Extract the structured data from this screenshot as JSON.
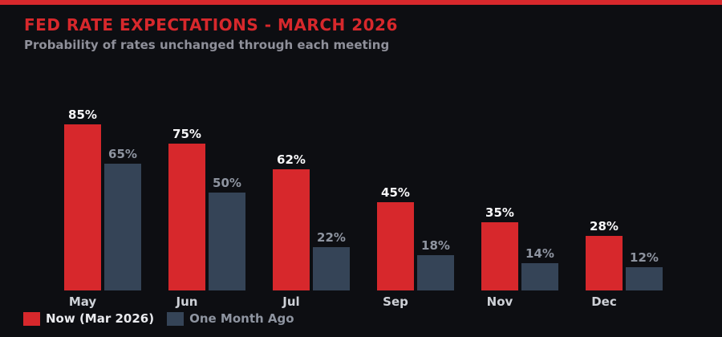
{
  "page": {
    "background_color": "#0d0e12",
    "accent_color": "#d7282c"
  },
  "header": {
    "title": "FED RATE EXPECTATIONS - MARCH 2026",
    "title_color": "#d7282c",
    "subtitle": "Probability of rates unchanged through each meeting",
    "subtitle_color": "#8f909a"
  },
  "legend": {
    "items": [
      {
        "label": "Now (Mar 2026)",
        "color": "#d7282c",
        "text_color": "#e9eaee"
      },
      {
        "label": "One Month Ago",
        "color": "#354457",
        "text_color": "#8e94a0"
      }
    ]
  },
  "chart_data": {
    "type": "bar",
    "title": "FED RATE EXPECTATIONS - MARCH 2026",
    "subtitle": "Probability of rates unchanged through each meeting",
    "categories": [
      "May",
      "Jun",
      "Jul",
      "Sep",
      "Nov",
      "Dec"
    ],
    "series": [
      {
        "name": "Now (Mar 2026)",
        "color": "#d7282c",
        "label_color": "#f7f7f9",
        "values": [
          85,
          75,
          62,
          45,
          35,
          28
        ]
      },
      {
        "name": "One Month Ago",
        "color": "#354457",
        "label_color": "#8e94a0",
        "values": [
          65,
          50,
          22,
          18,
          14,
          12
        ]
      }
    ],
    "value_suffix": "%",
    "value_labels_shown": true,
    "xlabel": "",
    "ylabel": "",
    "ylim": [
      0,
      100
    ],
    "grid": false,
    "y_axis_shown": false,
    "legend_position": "bottom-left"
  }
}
